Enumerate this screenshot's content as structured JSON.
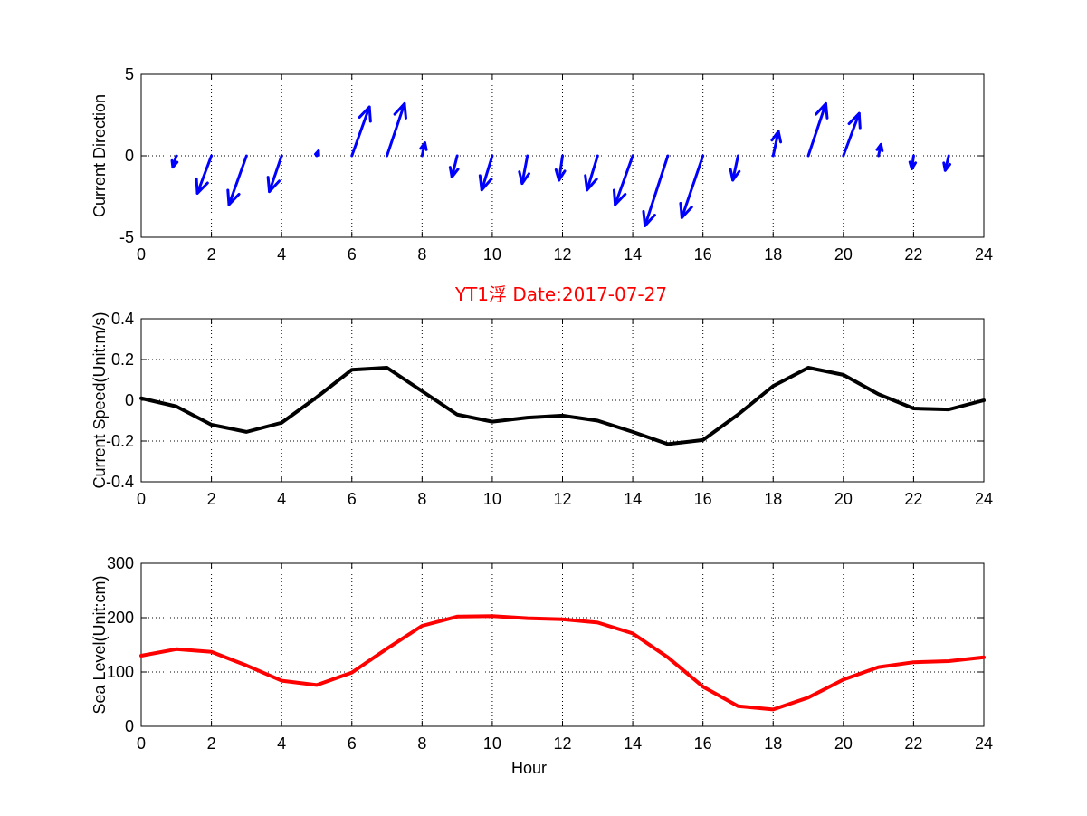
{
  "title": "YT1浮   Date:2017-07-27",
  "colors": {
    "title": "#ff0000",
    "direction": "#0000ff",
    "speed": "#000000",
    "sea_level": "#ff0000"
  },
  "chart_data": [
    {
      "type": "quiver",
      "ylabel": "Current Direction",
      "xlim": [
        0,
        24
      ],
      "ylim": [
        -5,
        5
      ],
      "x_ticks": [
        "0",
        "2",
        "4",
        "6",
        "8",
        "10",
        "12",
        "14",
        "16",
        "18",
        "20",
        "22",
        "24"
      ],
      "y_ticks": [
        "-5",
        "0",
        "5"
      ],
      "grid": true,
      "series": [
        {
          "color": "#0000ff",
          "x": [
            1,
            2,
            3,
            4,
            5,
            6,
            7,
            8,
            9,
            10,
            11,
            12,
            13,
            14,
            15,
            16,
            17,
            18,
            19,
            20,
            21,
            22,
            23
          ],
          "u": [
            -0.1,
            -0.4,
            -0.5,
            -0.35,
            0.05,
            0.5,
            0.5,
            0.08,
            -0.15,
            -0.3,
            -0.15,
            -0.1,
            -0.3,
            -0.5,
            -0.65,
            -0.6,
            -0.15,
            0.15,
            0.5,
            0.45,
            0.07,
            -0.05,
            -0.1
          ],
          "v": [
            -0.7,
            -2.3,
            -3.0,
            -2.2,
            0.3,
            3.0,
            3.2,
            0.8,
            -1.3,
            -2.1,
            -1.7,
            -1.5,
            -2.1,
            -3.0,
            -4.3,
            -3.8,
            -1.5,
            1.5,
            3.2,
            2.6,
            0.7,
            -0.8,
            -0.9
          ]
        }
      ]
    },
    {
      "type": "line",
      "title": "YT1浮   Date:2017-07-27",
      "ylabel": "Current Speed(Unit:m/s)",
      "xlim": [
        0,
        24
      ],
      "ylim": [
        -0.4,
        0.4
      ],
      "x_ticks": [
        "0",
        "2",
        "4",
        "6",
        "8",
        "10",
        "12",
        "14",
        "16",
        "18",
        "20",
        "22",
        "24"
      ],
      "y_ticks": [
        "-0.4",
        "-0.2",
        "0",
        "0.2",
        "0.4"
      ],
      "grid": true,
      "series": [
        {
          "color": "#000000",
          "x": [
            0,
            1,
            2,
            3,
            4,
            5,
            6,
            7,
            8,
            9,
            10,
            11,
            12,
            13,
            14,
            15,
            16,
            17,
            18,
            19,
            20,
            21,
            22,
            23,
            24
          ],
          "y": [
            0.01,
            -0.03,
            -0.12,
            -0.155,
            -0.11,
            0.015,
            0.15,
            0.16,
            0.045,
            -0.07,
            -0.105,
            -0.085,
            -0.075,
            -0.1,
            -0.155,
            -0.215,
            -0.195,
            -0.07,
            0.07,
            0.16,
            0.125,
            0.03,
            -0.04,
            -0.045,
            0.0
          ]
        }
      ]
    },
    {
      "type": "line",
      "xlabel": "Hour",
      "ylabel": "Sea Level(Unit:cm)",
      "xlim": [
        0,
        24
      ],
      "ylim": [
        0,
        300
      ],
      "x_ticks": [
        "0",
        "2",
        "4",
        "6",
        "8",
        "10",
        "12",
        "14",
        "16",
        "18",
        "20",
        "22",
        "24"
      ],
      "y_ticks": [
        "0",
        "100",
        "200",
        "300"
      ],
      "grid": true,
      "series": [
        {
          "color": "#ff0000",
          "x": [
            0,
            1,
            2,
            3,
            4,
            5,
            6,
            7,
            8,
            9,
            10,
            11,
            12,
            13,
            14,
            15,
            16,
            17,
            18,
            19,
            20,
            21,
            22,
            23,
            24
          ],
          "y": [
            130,
            142,
            137,
            112,
            84,
            76,
            99,
            143,
            185,
            202,
            203,
            199,
            197,
            191,
            171,
            127,
            73,
            37,
            31,
            53,
            86,
            109,
            118,
            120,
            127
          ]
        }
      ]
    }
  ]
}
